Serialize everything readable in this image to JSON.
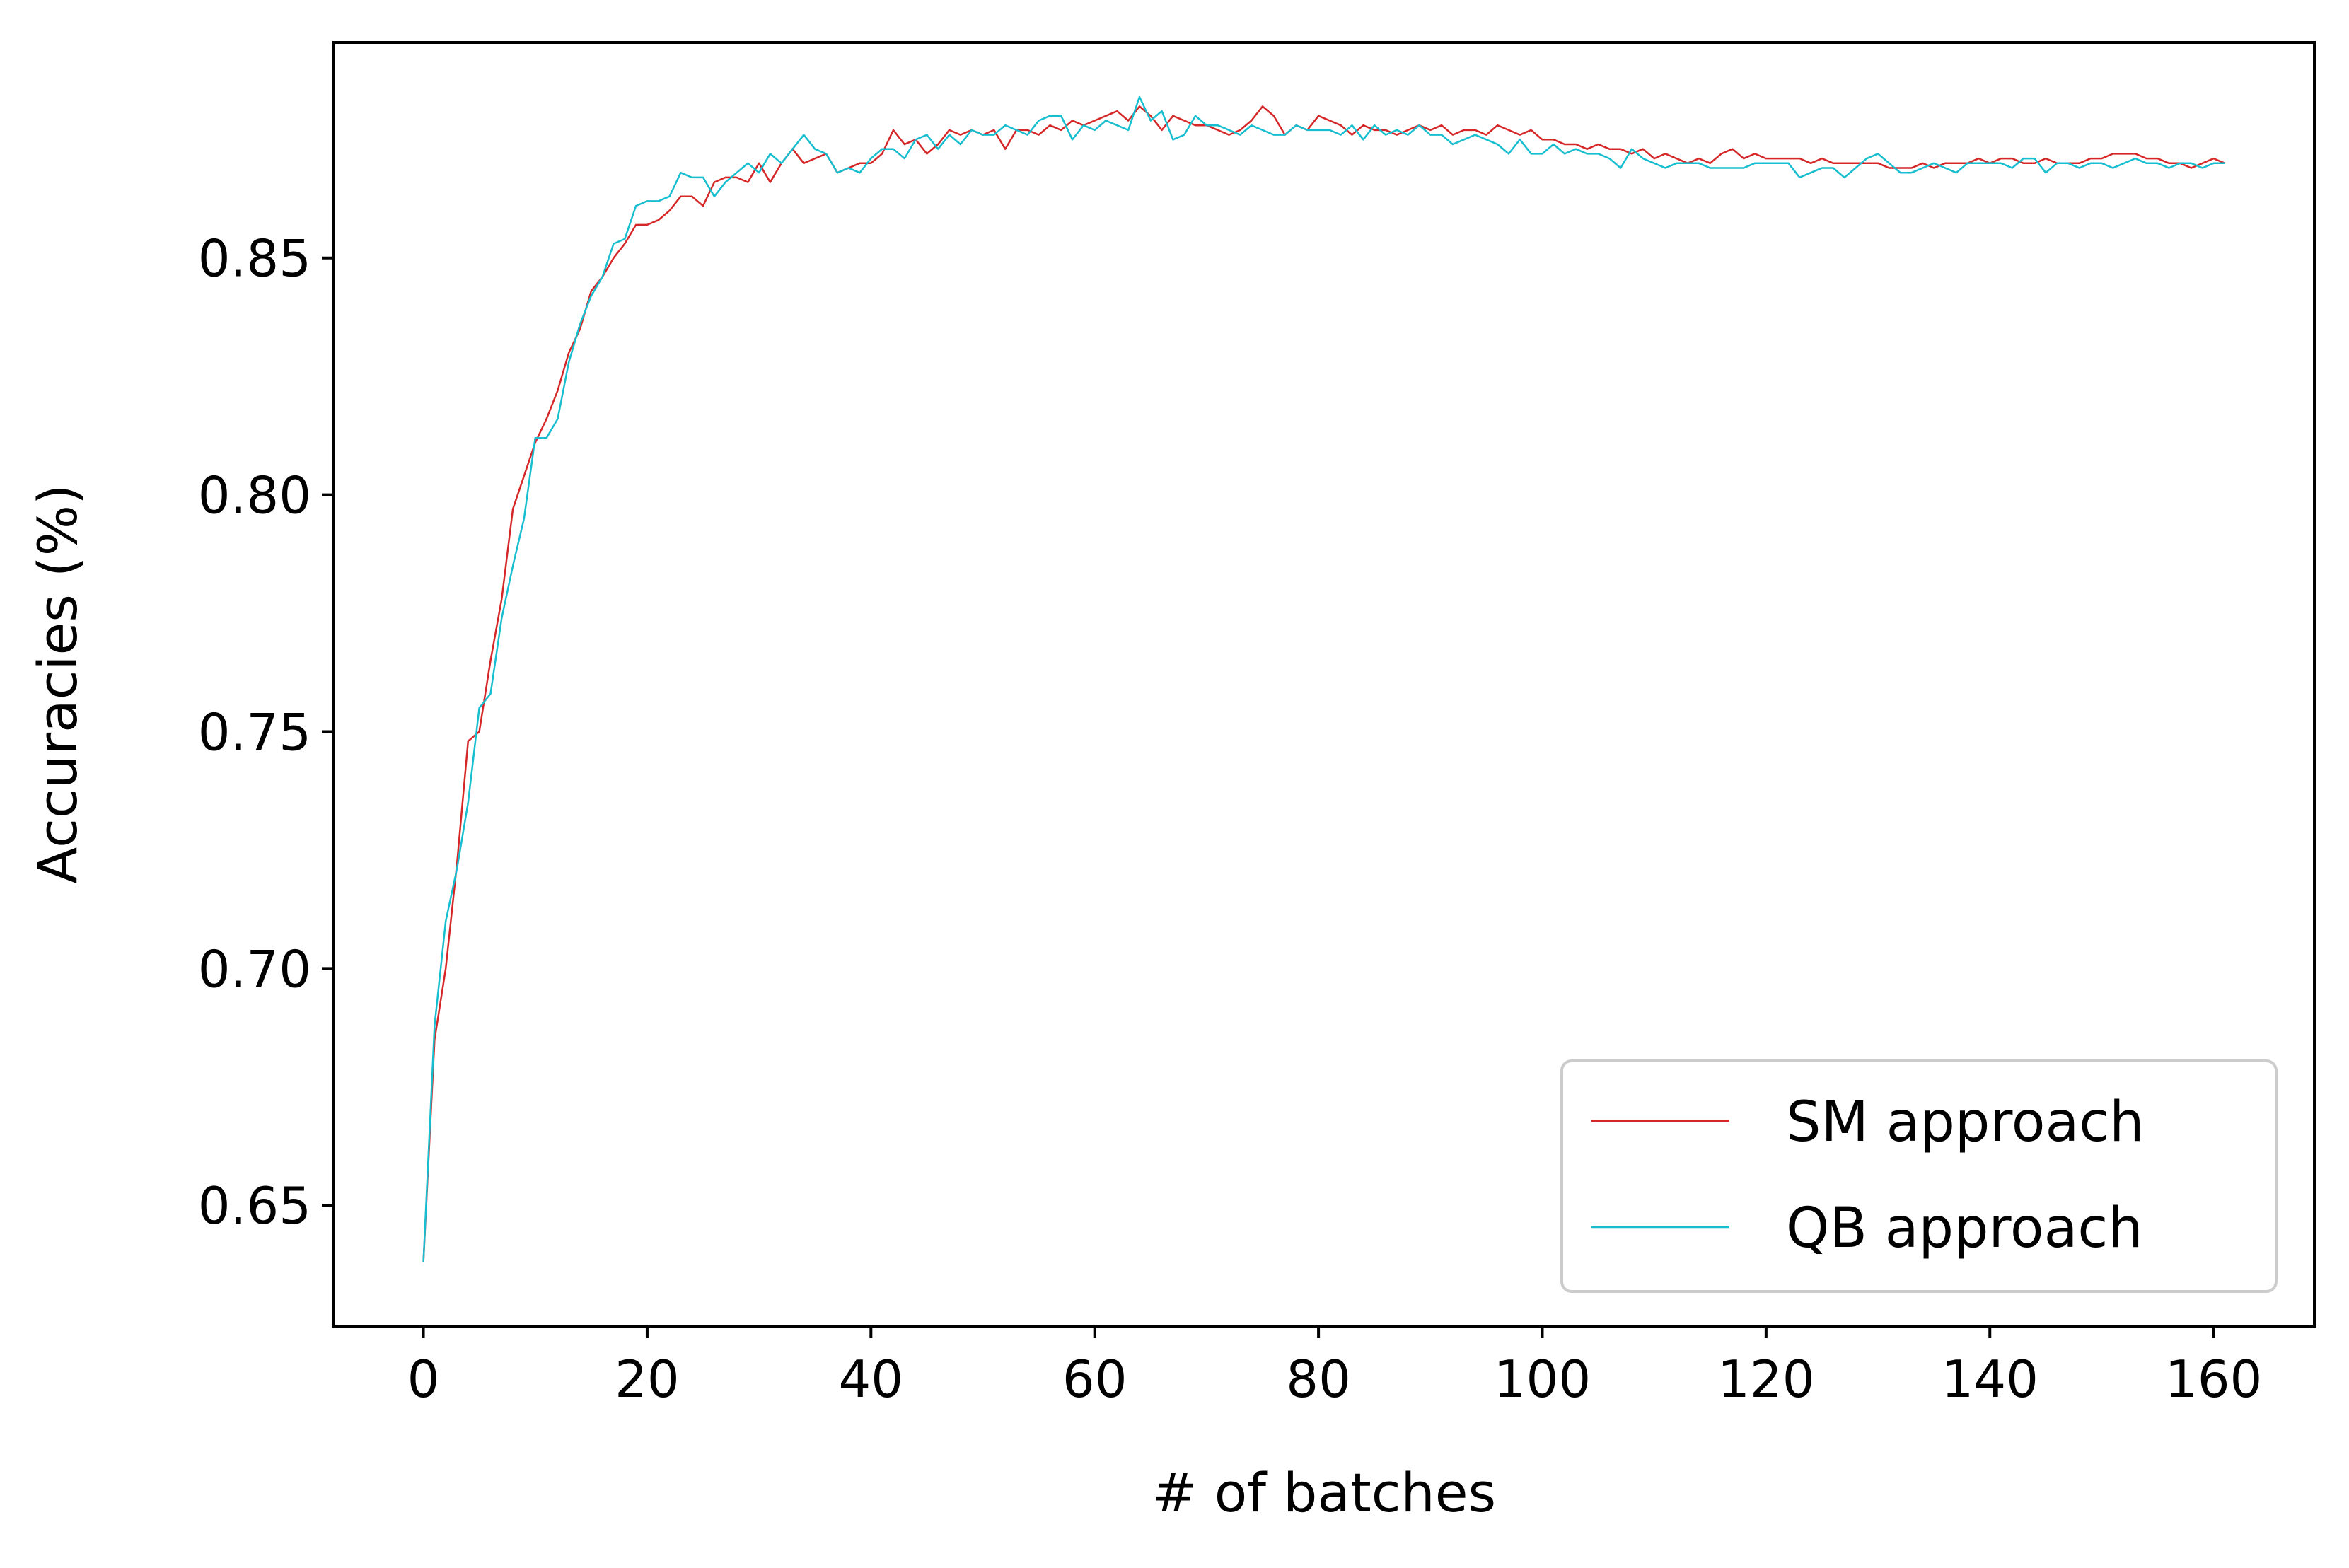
{
  "chart_data": {
    "type": "line",
    "title": "",
    "xlabel": "# of batches",
    "ylabel": "Accuracies (%)",
    "xlim": [
      -8,
      169
    ],
    "ylim": [
      0.6245,
      0.8955
    ],
    "xticks": [
      0,
      20,
      40,
      60,
      80,
      100,
      120,
      140,
      160
    ],
    "xtick_labels": [
      "0",
      "20",
      "40",
      "60",
      "80",
      "100",
      "120",
      "140",
      "160"
    ],
    "yticks": [
      0.65,
      0.7,
      0.75,
      0.8,
      0.85
    ],
    "ytick_labels": [
      "0.65",
      "0.70",
      "0.75",
      "0.80",
      "0.85"
    ],
    "grid": false,
    "legend_position": "lower-right",
    "x": [
      0,
      1,
      2,
      3,
      4,
      5,
      6,
      7,
      8,
      9,
      10,
      11,
      12,
      13,
      14,
      15,
      16,
      17,
      18,
      19,
      20,
      21,
      22,
      23,
      24,
      25,
      26,
      27,
      28,
      29,
      30,
      31,
      32,
      33,
      34,
      35,
      36,
      37,
      38,
      39,
      40,
      41,
      42,
      43,
      44,
      45,
      46,
      47,
      48,
      49,
      50,
      51,
      52,
      53,
      54,
      55,
      56,
      57,
      58,
      59,
      60,
      61,
      62,
      63,
      64,
      65,
      66,
      67,
      68,
      69,
      70,
      71,
      72,
      73,
      74,
      75,
      76,
      77,
      78,
      79,
      80,
      81,
      82,
      83,
      84,
      85,
      86,
      87,
      88,
      89,
      90,
      91,
      92,
      93,
      94,
      95,
      96,
      97,
      98,
      99,
      100,
      101,
      102,
      103,
      104,
      105,
      106,
      107,
      108,
      109,
      110,
      111,
      112,
      113,
      114,
      115,
      116,
      117,
      118,
      119,
      120,
      121,
      122,
      123,
      124,
      125,
      126,
      127,
      128,
      129,
      130,
      131,
      132,
      133,
      134,
      135,
      136,
      137,
      138,
      139,
      140,
      141,
      142,
      143,
      144,
      145,
      146,
      147,
      148,
      149,
      150,
      151,
      152,
      153,
      154,
      155,
      156,
      157,
      158,
      159,
      160,
      161
    ],
    "series": [
      {
        "name": "SM approach",
        "color": "#d62728",
        "values": [
          0.638,
          0.685,
          0.7,
          0.722,
          0.748,
          0.75,
          0.765,
          0.778,
          0.797,
          0.804,
          0.811,
          0.816,
          0.822,
          0.83,
          0.835,
          0.843,
          0.846,
          0.85,
          0.853,
          0.857,
          0.857,
          0.858,
          0.86,
          0.863,
          0.863,
          0.861,
          0.866,
          0.867,
          0.867,
          0.866,
          0.87,
          0.866,
          0.87,
          0.873,
          0.87,
          0.871,
          0.872,
          0.868,
          0.869,
          0.87,
          0.87,
          0.872,
          0.877,
          0.874,
          0.875,
          0.872,
          0.874,
          0.877,
          0.876,
          0.877,
          0.876,
          0.877,
          0.873,
          0.877,
          0.877,
          0.876,
          0.878,
          0.877,
          0.879,
          0.878,
          0.879,
          0.88,
          0.881,
          0.879,
          0.882,
          0.88,
          0.877,
          0.88,
          0.879,
          0.878,
          0.878,
          0.877,
          0.876,
          0.877,
          0.879,
          0.882,
          0.88,
          0.876,
          0.878,
          0.877,
          0.88,
          0.879,
          0.878,
          0.876,
          0.878,
          0.877,
          0.877,
          0.876,
          0.877,
          0.878,
          0.877,
          0.878,
          0.876,
          0.877,
          0.877,
          0.876,
          0.878,
          0.877,
          0.876,
          0.877,
          0.875,
          0.875,
          0.874,
          0.874,
          0.873,
          0.874,
          0.873,
          0.873,
          0.872,
          0.873,
          0.871,
          0.872,
          0.871,
          0.87,
          0.871,
          0.87,
          0.872,
          0.873,
          0.871,
          0.872,
          0.871,
          0.871,
          0.871,
          0.871,
          0.87,
          0.871,
          0.87,
          0.87,
          0.87,
          0.87,
          0.87,
          0.869,
          0.869,
          0.869,
          0.87,
          0.869,
          0.87,
          0.87,
          0.87,
          0.871,
          0.87,
          0.871,
          0.871,
          0.87,
          0.87,
          0.871,
          0.87,
          0.87,
          0.87,
          0.871,
          0.871,
          0.872,
          0.872,
          0.872,
          0.871,
          0.871,
          0.87,
          0.87,
          0.869,
          0.87,
          0.871,
          0.87
        ]
      },
      {
        "name": "QB approach",
        "color": "#17becf",
        "values": [
          0.638,
          0.688,
          0.71,
          0.721,
          0.735,
          0.755,
          0.758,
          0.774,
          0.785,
          0.795,
          0.812,
          0.812,
          0.816,
          0.828,
          0.836,
          0.842,
          0.846,
          0.853,
          0.854,
          0.861,
          0.862,
          0.862,
          0.863,
          0.868,
          0.867,
          0.867,
          0.863,
          0.866,
          0.868,
          0.87,
          0.868,
          0.872,
          0.87,
          0.873,
          0.876,
          0.873,
          0.872,
          0.868,
          0.869,
          0.868,
          0.871,
          0.873,
          0.873,
          0.871,
          0.875,
          0.876,
          0.873,
          0.876,
          0.874,
          0.877,
          0.876,
          0.876,
          0.878,
          0.877,
          0.876,
          0.879,
          0.88,
          0.88,
          0.875,
          0.878,
          0.877,
          0.879,
          0.878,
          0.877,
          0.884,
          0.879,
          0.881,
          0.875,
          0.876,
          0.88,
          0.878,
          0.878,
          0.877,
          0.876,
          0.878,
          0.877,
          0.876,
          0.876,
          0.878,
          0.877,
          0.877,
          0.877,
          0.876,
          0.878,
          0.875,
          0.878,
          0.876,
          0.877,
          0.876,
          0.878,
          0.876,
          0.876,
          0.874,
          0.875,
          0.876,
          0.875,
          0.874,
          0.872,
          0.875,
          0.872,
          0.872,
          0.874,
          0.872,
          0.873,
          0.872,
          0.872,
          0.871,
          0.869,
          0.873,
          0.871,
          0.87,
          0.869,
          0.87,
          0.87,
          0.87,
          0.869,
          0.869,
          0.869,
          0.869,
          0.87,
          0.87,
          0.87,
          0.87,
          0.867,
          0.868,
          0.869,
          0.869,
          0.867,
          0.869,
          0.871,
          0.872,
          0.87,
          0.868,
          0.868,
          0.869,
          0.87,
          0.869,
          0.868,
          0.87,
          0.87,
          0.87,
          0.87,
          0.869,
          0.871,
          0.871,
          0.868,
          0.87,
          0.87,
          0.869,
          0.87,
          0.87,
          0.869,
          0.87,
          0.871,
          0.87,
          0.87,
          0.869,
          0.87,
          0.87,
          0.869,
          0.87,
          0.87
        ]
      }
    ]
  }
}
